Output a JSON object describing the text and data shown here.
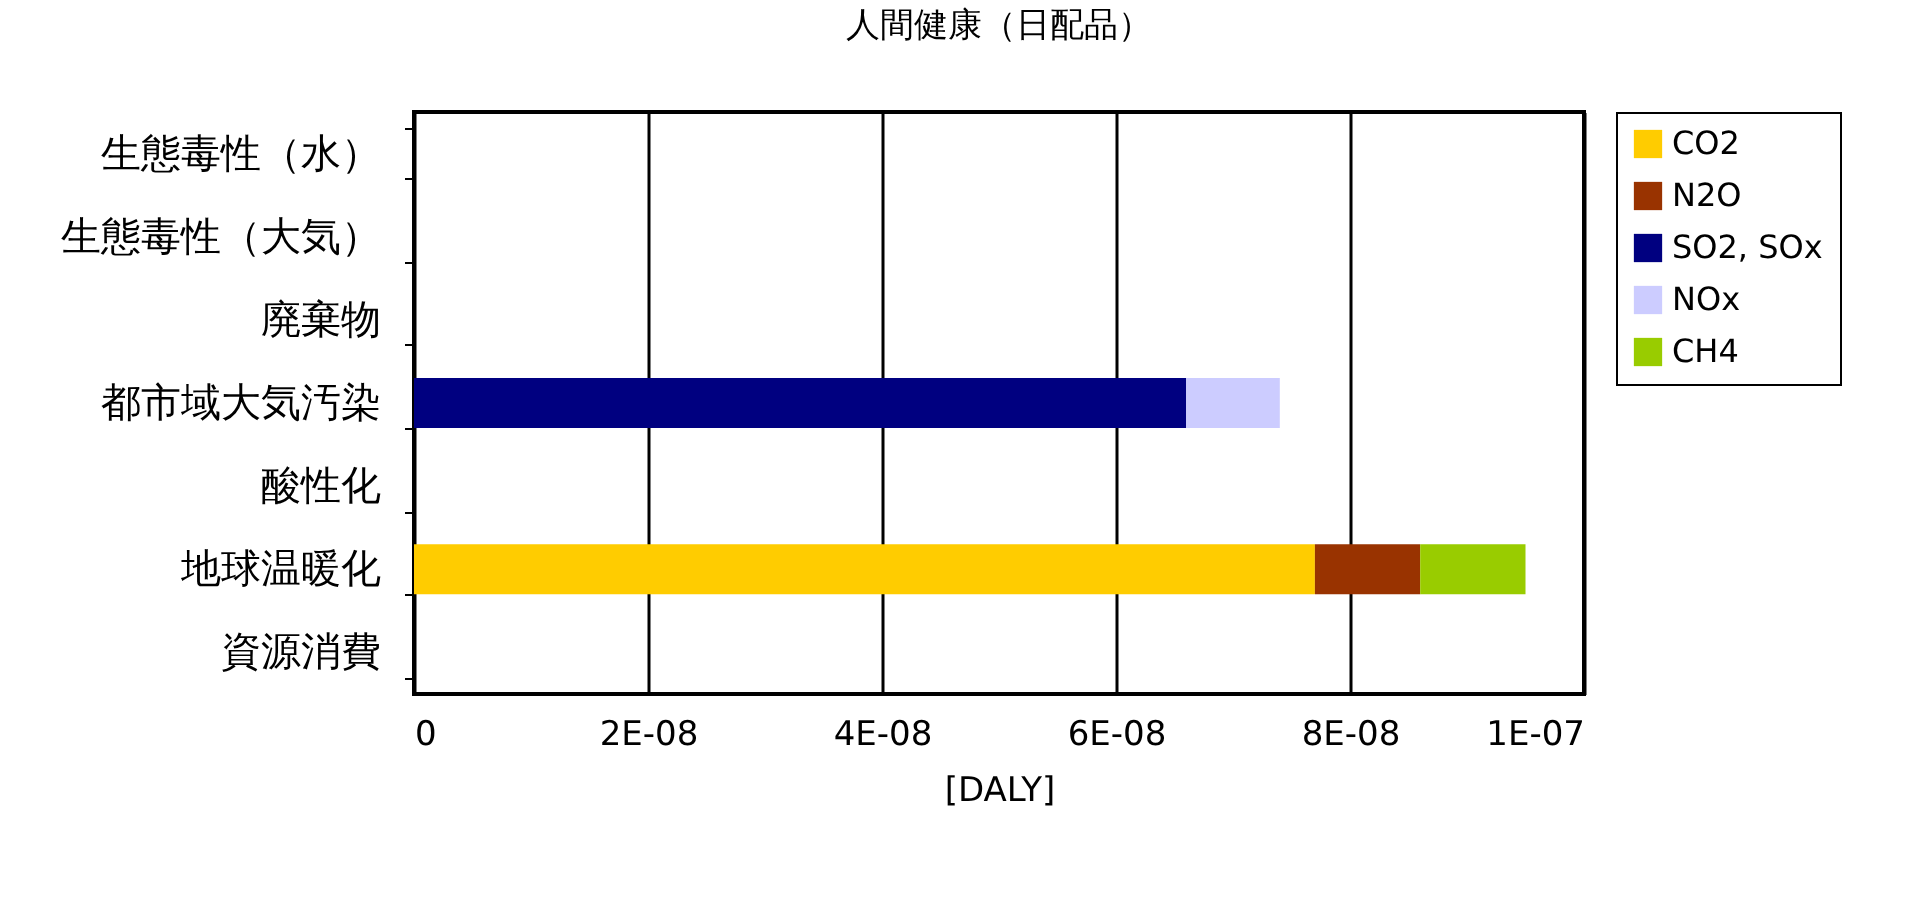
{
  "chart_data": {
    "type": "bar",
    "orientation": "horizontal",
    "stacked": true,
    "title": "人間健康（日配品）",
    "xlabel": "[DALY]",
    "categories": [
      "生態毒性（水）",
      "生態毒性（大気）",
      "廃棄物",
      "都市域大気汚染",
      "酸性化",
      "地球温暖化",
      "資源消費"
    ],
    "series": [
      {
        "name": "CO2",
        "color": "#ffcc00",
        "values": [
          null,
          null,
          null,
          null,
          null,
          7.7e-08,
          null
        ]
      },
      {
        "name": "N2O",
        "color": "#993300",
        "values": [
          null,
          null,
          null,
          null,
          null,
          9e-09,
          null
        ]
      },
      {
        "name": "SO2, SOx",
        "color": "#000080",
        "values": [
          null,
          null,
          null,
          6.6e-08,
          null,
          null,
          null
        ]
      },
      {
        "name": "NOx",
        "color": "#ccccff",
        "values": [
          null,
          null,
          null,
          8e-09,
          null,
          null,
          null
        ]
      },
      {
        "name": "CH4",
        "color": "#99cc00",
        "values": [
          null,
          null,
          null,
          null,
          null,
          9e-09,
          null
        ]
      }
    ],
    "xlim": [
      0,
      1e-07
    ],
    "xticks": [
      0,
      {
        "value": 2e-08,
        "label": "2E-08"
      },
      {
        "value": 4e-08,
        "label": "4E-08"
      },
      {
        "value": 6e-08,
        "label": "6E-08"
      },
      {
        "value": 8e-08,
        "label": "8E-08"
      },
      {
        "value": 1e-07,
        "label": "1E-07"
      }
    ],
    "grid": "x",
    "legend": "right"
  }
}
